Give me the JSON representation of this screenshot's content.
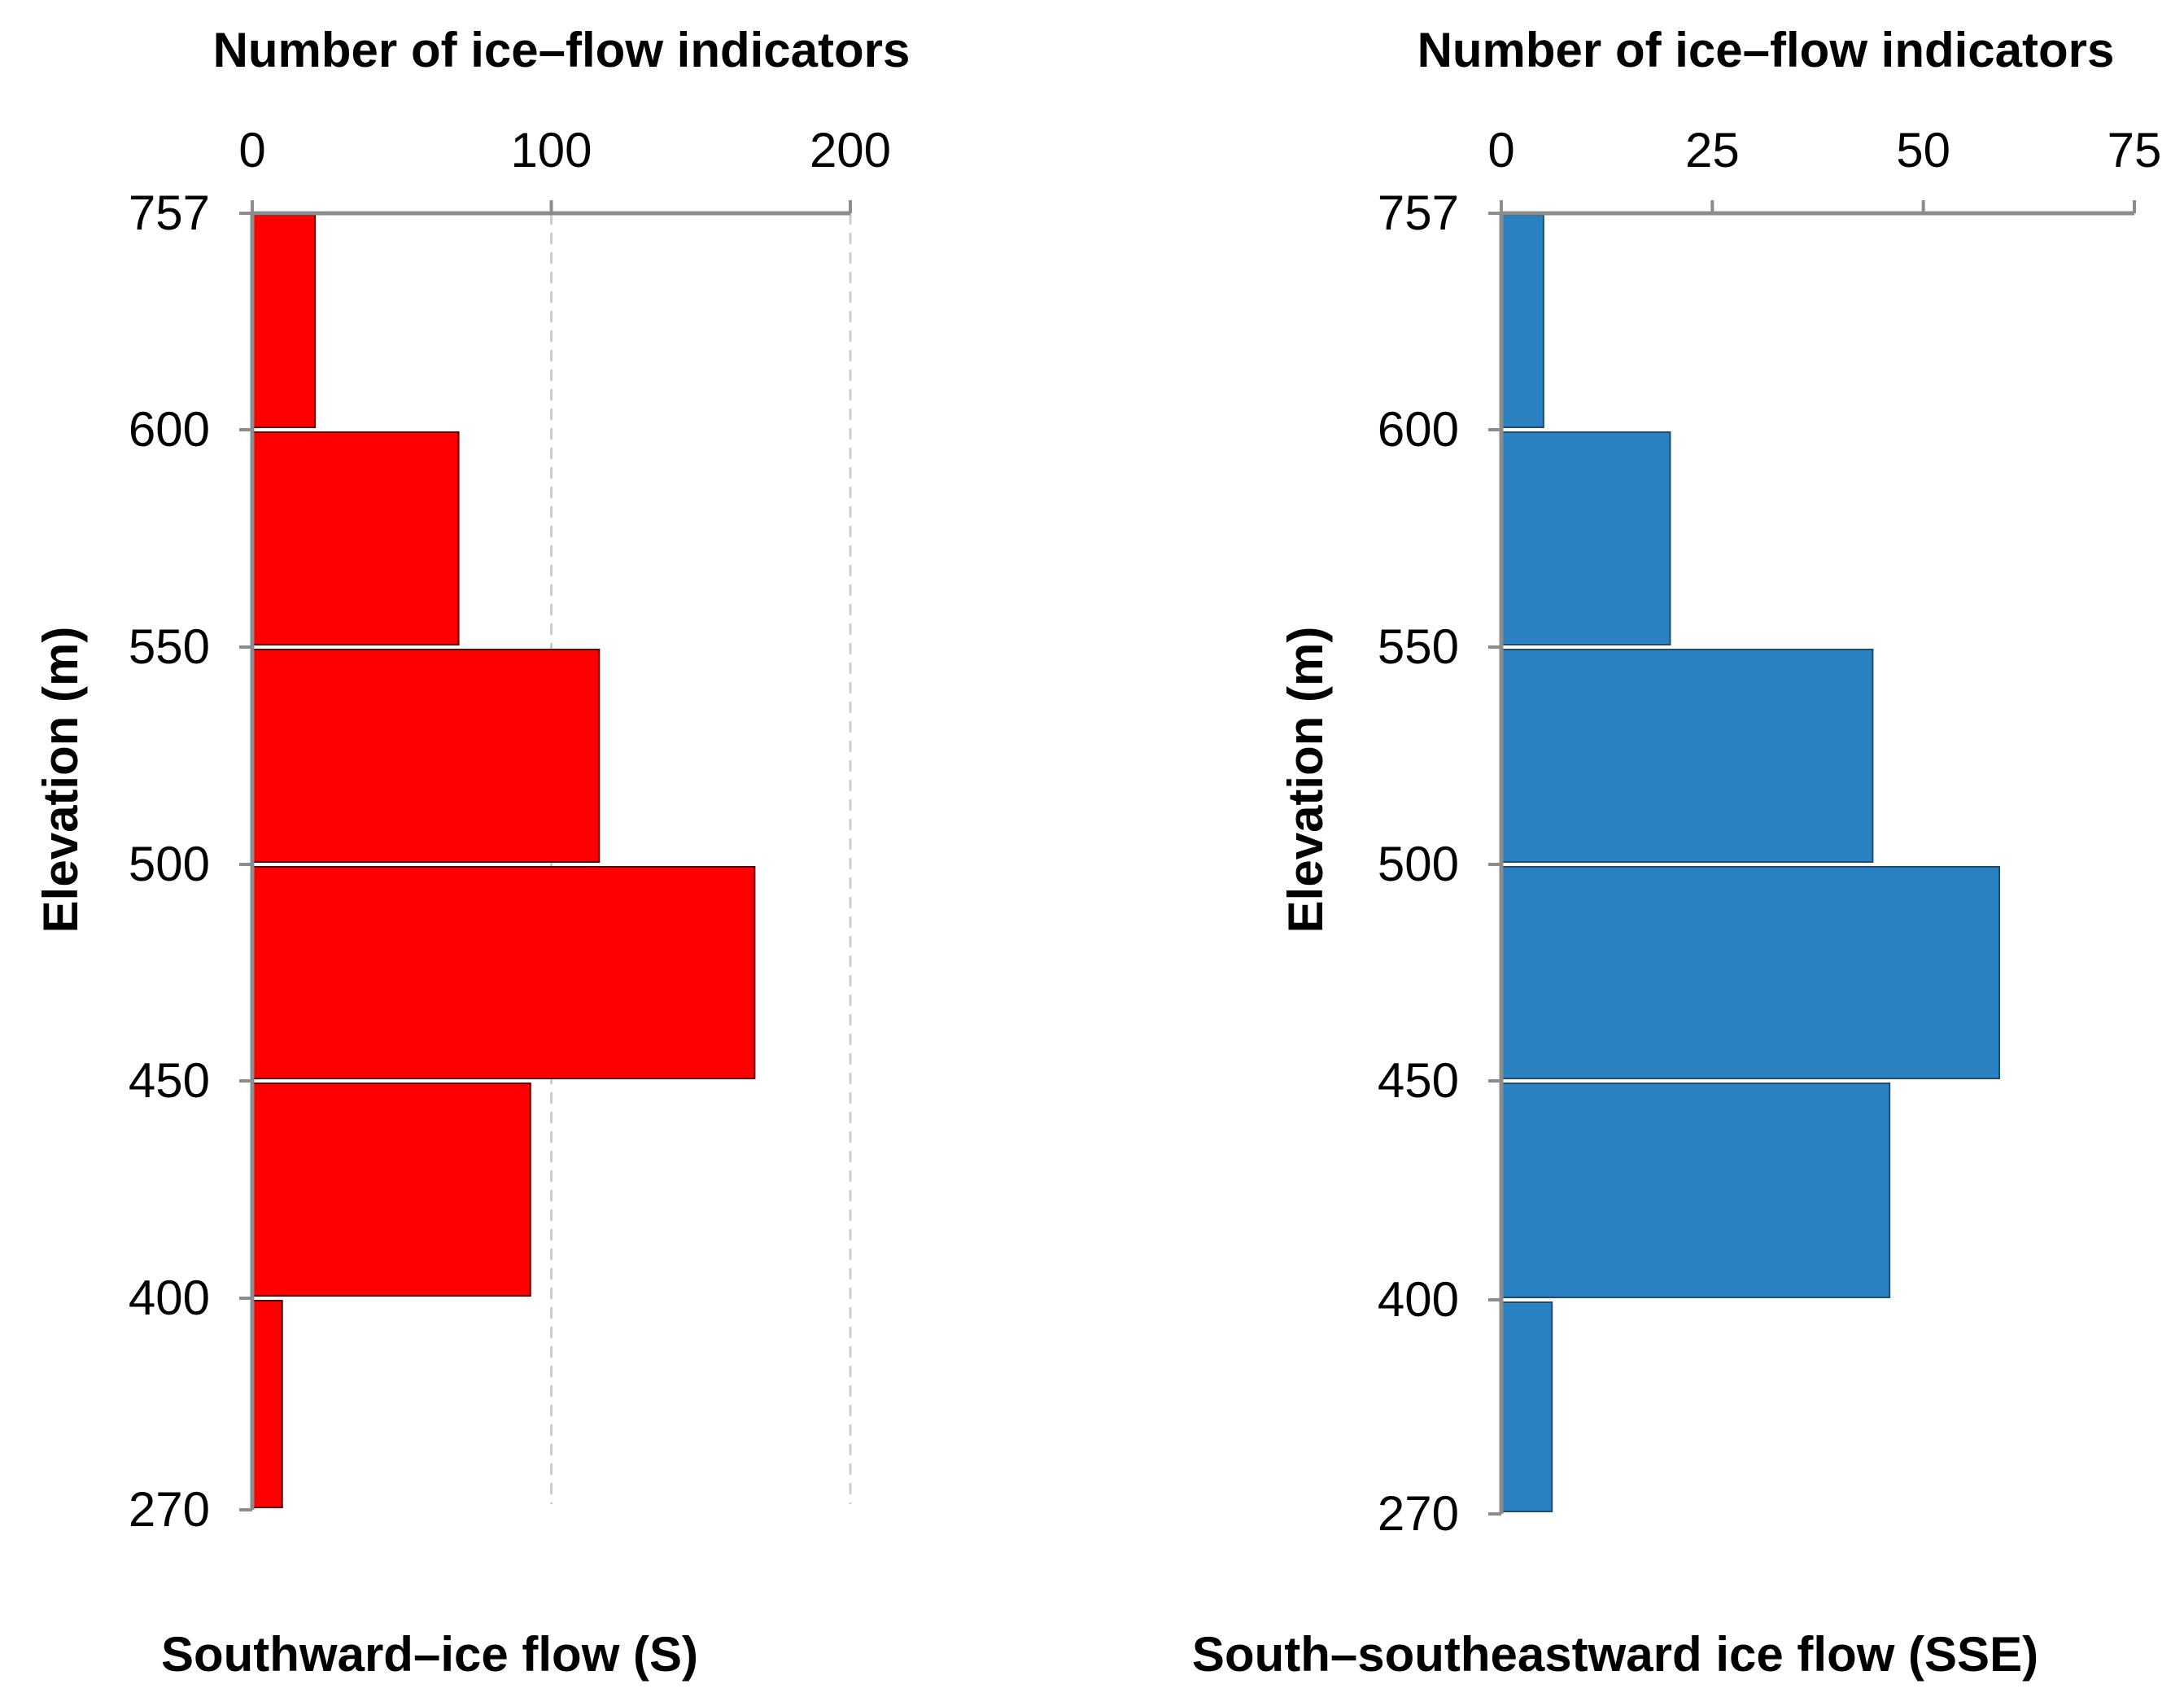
{
  "chart_data": [
    {
      "type": "bar",
      "orientation": "horizontal",
      "title": "Southward–ice flow (S)",
      "xlabel": "Number of ice–flow indicators",
      "ylabel": "Elevation (m)",
      "xlim": [
        0,
        200
      ],
      "xticks": [
        "0",
        "100",
        "200"
      ],
      "yticks": [
        "757",
        "600",
        "550",
        "500",
        "450",
        "400",
        "270"
      ],
      "categories": [
        "757–600",
        "600–550",
        "550–500",
        "500–450",
        "450–400",
        "400–270"
      ],
      "values": [
        21,
        69,
        116,
        168,
        93,
        10
      ],
      "grid": true,
      "color": "#ff0000"
    },
    {
      "type": "bar",
      "orientation": "horizontal",
      "title": "South–southeastward ice flow (SSE)",
      "xlabel": "Number of ice–flow indicators",
      "ylabel": "Elevation (m)",
      "xlim": [
        0,
        75
      ],
      "xticks": [
        "0",
        "25",
        "50",
        "75"
      ],
      "yticks": [
        "757",
        "600",
        "550",
        "500",
        "450",
        "400",
        "270"
      ],
      "categories": [
        "757–600",
        "600–550",
        "550–500",
        "500–450",
        "450–400",
        "400–270"
      ],
      "values": [
        5,
        20,
        44,
        59,
        46,
        6
      ],
      "grid": false,
      "color": "#2981c1"
    }
  ]
}
